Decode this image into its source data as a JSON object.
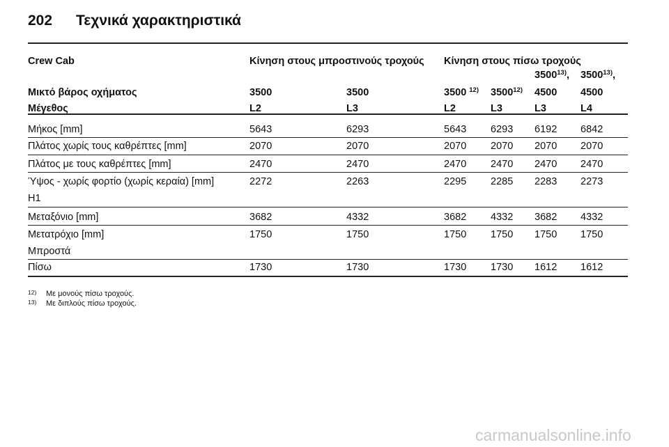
{
  "header": {
    "page_number": "202",
    "title": "Τεχνικά χαρακτηριστικά"
  },
  "table": {
    "group_header": [
      "Crew Cab",
      "Κίνηση στους μπροστινούς τροχούς",
      "Κίνηση στους πίσω τροχούς"
    ],
    "weight_row": {
      "label": "Μικτό βάρος οχήματος",
      "cells": [
        {
          "text": "3500"
        },
        {
          "text": "3500"
        },
        {
          "text": "3500",
          "sup": "12)"
        },
        {
          "text": "3500",
          "sup": "12)"
        },
        {
          "top": "3500",
          "top_sup": "13)",
          "top_suffix": ",",
          "text": "4500"
        },
        {
          "top": "3500",
          "top_sup": "13)",
          "top_suffix": ",",
          "text": "4500"
        }
      ]
    },
    "size_row": [
      "Μέγεθος",
      "L2",
      "L3",
      "L2",
      "L3",
      "L3",
      "L4"
    ],
    "rows": [
      {
        "label": [
          "Μήκος [mm]"
        ],
        "values": [
          "5643",
          "6293",
          "5643",
          "6293",
          "6192",
          "6842"
        ]
      },
      {
        "label": [
          "Πλάτος χωρίς τους καθρέπτες [mm]"
        ],
        "values": [
          "2070",
          "2070",
          "2070",
          "2070",
          "2070",
          "2070"
        ]
      },
      {
        "label": [
          "Πλάτος με τους καθρέπτες [mm]"
        ],
        "values": [
          "2470",
          "2470",
          "2470",
          "2470",
          "2470",
          "2470"
        ]
      },
      {
        "label": [
          "Ύψος - χωρίς φορτίο (χωρίς κεραία) [mm]",
          "H1"
        ],
        "values": [
          "2272",
          "2263",
          "2295",
          "2285",
          "2283",
          "2273"
        ]
      },
      {
        "label": [
          "Μεταξόνιο [mm]"
        ],
        "values": [
          "3682",
          "4332",
          "3682",
          "4332",
          "3682",
          "4332"
        ]
      },
      {
        "label": [
          "Μετατρόχιο [mm]",
          "Μπροστά"
        ],
        "values": [
          "1750",
          "1750",
          "1750",
          "1750",
          "1750",
          "1750"
        ]
      },
      {
        "label": [
          "Πίσω"
        ],
        "values": [
          "1730",
          "1730",
          "1730",
          "1730",
          "1612",
          "1612"
        ]
      }
    ]
  },
  "footnotes": [
    {
      "mark": "12)",
      "text": "Με μονούς πίσω τροχούς."
    },
    {
      "mark": "13)",
      "text": "Με διπλούς πίσω τροχούς."
    }
  ],
  "watermark": "carmanualsonline.info"
}
